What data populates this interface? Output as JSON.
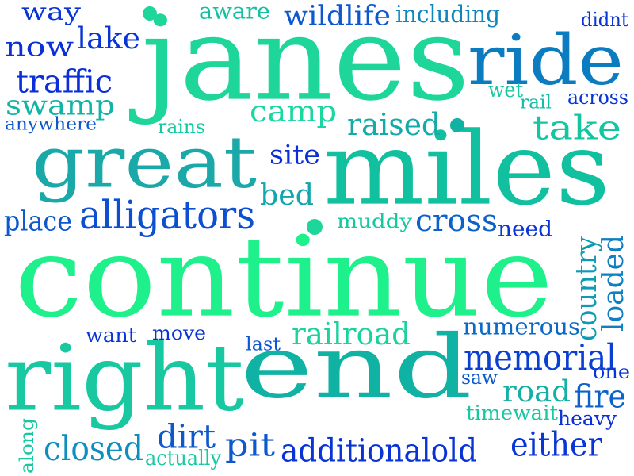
{
  "words": [
    {
      "text": "janes",
      "color": "#1fd69a"
    },
    {
      "text": "continue",
      "color": "#1ef08c"
    },
    {
      "text": "miles",
      "color": "#10c09e"
    },
    {
      "text": "end",
      "color": "#10b2a4"
    },
    {
      "text": "right",
      "color": "#18c8a0"
    },
    {
      "text": "great",
      "color": "#1aa9a8"
    },
    {
      "text": "ride",
      "color": "#0c7cc0"
    },
    {
      "text": "alligators",
      "color": "#0c4fd0"
    },
    {
      "text": "memorial",
      "color": "#0a3fd4"
    },
    {
      "text": "additionalold",
      "color": "#0a33d6"
    },
    {
      "text": "railroad",
      "color": "#19d29e"
    },
    {
      "text": "country",
      "color": "#0d9cb4"
    },
    {
      "text": "loaded",
      "color": "#0d7fc2"
    },
    {
      "text": "raised",
      "color": "#13aaa8"
    },
    {
      "text": "camp",
      "color": "#1ad6a0"
    },
    {
      "text": "take",
      "color": "#14c6a0"
    },
    {
      "text": "traffic",
      "color": "#0a2ed8"
    },
    {
      "text": "swamp",
      "color": "#12b4a6"
    },
    {
      "text": "now",
      "color": "#0a2ed8"
    },
    {
      "text": "lake",
      "color": "#0a35d6"
    },
    {
      "text": "way",
      "color": "#0a35d6"
    },
    {
      "text": "aware",
      "color": "#15c0a0"
    },
    {
      "text": "wildlife",
      "color": "#0c58cc"
    },
    {
      "text": "including",
      "color": "#0e86bc"
    },
    {
      "text": "didnt",
      "color": "#0a35d6"
    },
    {
      "text": "wet",
      "color": "#18c8a0"
    },
    {
      "text": "rail",
      "color": "#16bda4"
    },
    {
      "text": "across",
      "color": "#0a35d6"
    },
    {
      "text": "anywhere",
      "color": "#0c58cc"
    },
    {
      "text": "rains",
      "color": "#14c9a0"
    },
    {
      "text": "site",
      "color": "#0a2ed8"
    },
    {
      "text": "bed",
      "color": "#12a6ac"
    },
    {
      "text": "place",
      "color": "#0c58cc"
    },
    {
      "text": "muddy",
      "color": "#14c9a0"
    },
    {
      "text": "cross",
      "color": "#0c62c8"
    },
    {
      "text": "need",
      "color": "#0a35d6"
    },
    {
      "text": "numerous",
      "color": "#0c6ac6"
    },
    {
      "text": "want",
      "color": "#0a35d6"
    },
    {
      "text": "move",
      "color": "#0a35d6"
    },
    {
      "text": "last",
      "color": "#0c58cc"
    },
    {
      "text": "one",
      "color": "#0a35d6"
    },
    {
      "text": "saw",
      "color": "#0c58cc"
    },
    {
      "text": "road",
      "color": "#13b0a6"
    },
    {
      "text": "fire",
      "color": "#0c62c8"
    },
    {
      "text": "timewait",
      "color": "#18c8a0"
    },
    {
      "text": "heavy",
      "color": "#0a2ed8"
    },
    {
      "text": "dirt",
      "color": "#0c58cc"
    },
    {
      "text": "pit",
      "color": "#0c58cc"
    },
    {
      "text": "closed",
      "color": "#0e8ebc"
    },
    {
      "text": "along",
      "color": "#18c8a0"
    },
    {
      "text": "actually",
      "color": "#18c8a0"
    },
    {
      "text": "either",
      "color": "#0a35d6"
    }
  ]
}
